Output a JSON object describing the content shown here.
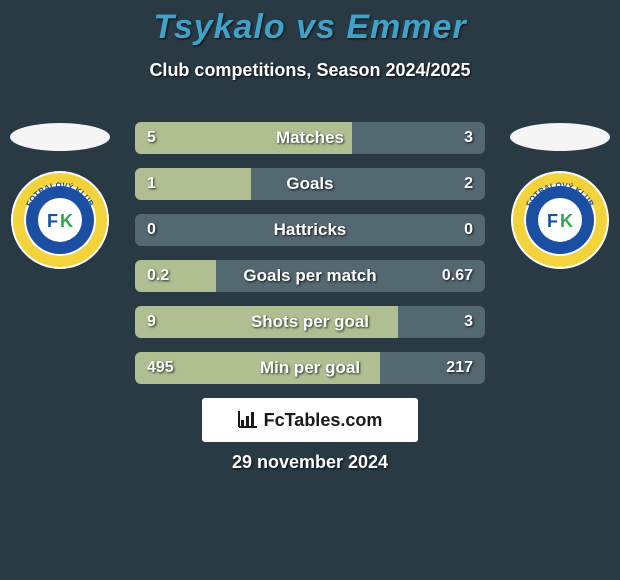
{
  "colors": {
    "bg": "#2a3a45",
    "title": "#3fa2c9",
    "subtitle": "#ffffff",
    "track": "#546872",
    "fill": "#afbf91",
    "value": "#ffffff",
    "label": "#ffffff",
    "brand_bg": "#ffffff",
    "brand_text": "#1a1a1a",
    "photo_bg": "#f5f5f5",
    "date": "#ffffff"
  },
  "badge": {
    "bg": "#ffffff",
    "ring": "#f2d33b",
    "ring_inner": "#1a4fa3",
    "center": "#ffffff",
    "fk_text": "FK",
    "fk_color": "#1a4fa3",
    "k_color": "#2fa84f",
    "arc_text": "FOTBALOVÝ KLUB",
    "arc_bottom": "TEPLICE",
    "arc_text_color": "#1a4fa3"
  },
  "header": {
    "title_left": "Tsykalo",
    "title_mid": "vs",
    "title_right": "Emmer",
    "subtitle": "Club competitions, Season 2024/2025"
  },
  "rows": [
    {
      "label": "Matches",
      "left": "5",
      "right": "3",
      "fill_pct": 62
    },
    {
      "label": "Goals",
      "left": "1",
      "right": "2",
      "fill_pct": 33
    },
    {
      "label": "Hattricks",
      "left": "0",
      "right": "0",
      "fill_pct": 0
    },
    {
      "label": "Goals per match",
      "left": "0.2",
      "right": "0.67",
      "fill_pct": 23
    },
    {
      "label": "Shots per goal",
      "left": "9",
      "right": "3",
      "fill_pct": 75
    },
    {
      "label": "Min per goal",
      "left": "495",
      "right": "217",
      "fill_pct": 70
    }
  ],
  "brand": {
    "text": "FcTables.com"
  },
  "date": "29 november 2024"
}
